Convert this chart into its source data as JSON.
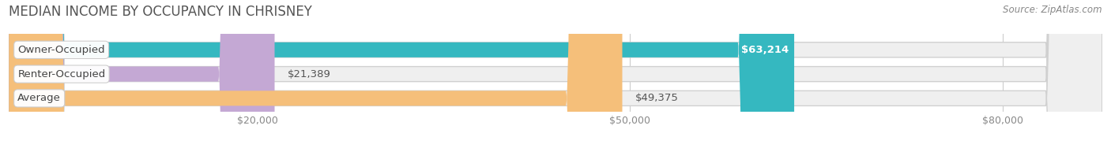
{
  "title": "MEDIAN INCOME BY OCCUPANCY IN CHRISNEY",
  "source": "Source: ZipAtlas.com",
  "categories": [
    "Owner-Occupied",
    "Renter-Occupied",
    "Average"
  ],
  "values": [
    63214,
    21389,
    49375
  ],
  "bar_colors": [
    "#35b8c0",
    "#c4a8d4",
    "#f5bf7a"
  ],
  "bar_bg_color": "#efefef",
  "value_labels": [
    "$63,214",
    "$21,389",
    "$49,375"
  ],
  "value_inside": [
    true,
    false,
    false
  ],
  "tick_vals": [
    20000,
    50000,
    80000
  ],
  "tick_labs": [
    "$20,000",
    "$50,000",
    "$80,000"
  ],
  "xmax": 88000,
  "title_fontsize": 12,
  "source_fontsize": 8.5,
  "label_fontsize": 9.5,
  "value_fontsize": 9.5
}
